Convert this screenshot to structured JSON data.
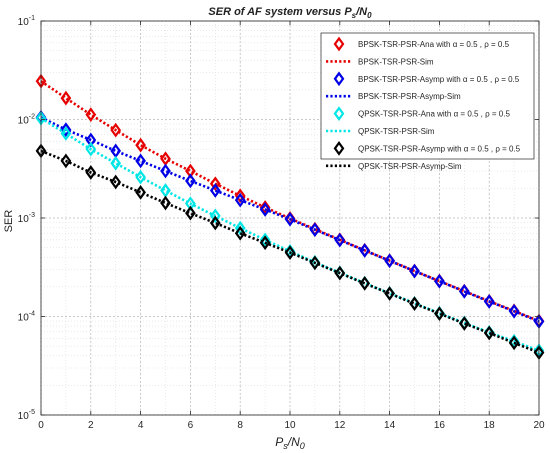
{
  "chart_data": {
    "type": "line",
    "title_main": "SER of AF system versus P",
    "title_sub": "s",
    "title_slash": "/N",
    "title_sub2": "0",
    "xlabel_main": "P",
    "xlabel_sub": "s",
    "xlabel_slash": "/N",
    "xlabel_sub2": "0",
    "ylabel": "SER",
    "x": [
      0,
      1,
      2,
      3,
      4,
      5,
      6,
      7,
      8,
      9,
      10,
      11,
      12,
      13,
      14,
      15,
      16,
      17,
      18,
      19,
      20
    ],
    "xlim": [
      0,
      20
    ],
    "ylim": [
      1e-05,
      0.1
    ],
    "yscale": "log",
    "grid": true,
    "legend_position": "top-right",
    "x_tick_values": [
      0,
      2,
      4,
      6,
      8,
      10,
      12,
      14,
      16,
      18,
      20
    ],
    "x_tick_labels": [
      "0",
      "2",
      "4",
      "6",
      "8",
      "10",
      "12",
      "14",
      "16",
      "18",
      "20"
    ],
    "y_tick_values": [
      1e-05,
      0.0001,
      0.001,
      0.01,
      0.1
    ],
    "y_tick_labels": [
      {
        "base": "10",
        "exp": "-5"
      },
      {
        "base": "10",
        "exp": "-4"
      },
      {
        "base": "10",
        "exp": "-3"
      },
      {
        "base": "10",
        "exp": "-2"
      },
      {
        "base": "10",
        "exp": "-1"
      }
    ],
    "series": [
      {
        "name": "BPSK-TSR-PSR-Ana with α = 0.5 , ρ = 0.5",
        "color": "#e60000",
        "style": "marker",
        "values": [
          0.0245,
          0.0165,
          0.0112,
          0.0078,
          0.0055,
          0.004,
          0.003,
          0.00223,
          0.00168,
          0.00128,
          0.00099,
          0.00077,
          0.000602,
          0.00047,
          0.000369,
          0.00029,
          0.000229,
          0.000181,
          0.000143,
          0.000114,
          9e-05
        ]
      },
      {
        "name": "BPSK-TSR-PSR-Sim",
        "color": "#e60000",
        "style": "dotted",
        "values": [
          0.0245,
          0.0165,
          0.0112,
          0.0078,
          0.0055,
          0.004,
          0.003,
          0.00223,
          0.00168,
          0.00128,
          0.00099,
          0.00077,
          0.000602,
          0.00047,
          0.000369,
          0.00029,
          0.000229,
          0.000181,
          0.000143,
          0.000114,
          9e-05
        ]
      },
      {
        "name": "BPSK-TSR-PSR-Asymp with α = 0.5 , ρ = 0.5",
        "color": "#0000e6",
        "style": "marker",
        "values": [
          0.0105,
          0.0079,
          0.0062,
          0.0048,
          0.0038,
          0.003,
          0.00238,
          0.0019,
          0.00152,
          0.00122,
          0.00097,
          0.00076,
          0.000596,
          0.000468,
          0.000368,
          0.000289,
          0.000228,
          0.00018,
          0.000142,
          0.000113,
          8.9e-05
        ]
      },
      {
        "name": "BPSK-TSR-PSR-Asymp-Sim",
        "color": "#0000e6",
        "style": "dotted",
        "values": [
          0.0105,
          0.0079,
          0.0062,
          0.0048,
          0.0038,
          0.003,
          0.00238,
          0.0019,
          0.00152,
          0.00122,
          0.00097,
          0.00076,
          0.000596,
          0.000468,
          0.000368,
          0.000289,
          0.000228,
          0.00018,
          0.000142,
          0.000113,
          8.9e-05
        ]
      },
      {
        "name": "QPSK-TSR-PSR-Ana with α = 0.5 , ρ = 0.5",
        "color": "#00e6e6",
        "style": "marker",
        "values": [
          0.0103,
          0.0072,
          0.005,
          0.0036,
          0.0026,
          0.0019,
          0.0014,
          0.00105,
          0.00079,
          0.0006,
          0.00046,
          0.000355,
          0.000278,
          0.000218,
          0.000172,
          0.000136,
          0.000108,
          8.6e-05,
          6.9e-05,
          5.6e-05,
          4.5e-05
        ]
      },
      {
        "name": "QPSK-TSR-PSR-Sim",
        "color": "#00e6e6",
        "style": "dotted",
        "values": [
          0.0103,
          0.0072,
          0.005,
          0.0036,
          0.0026,
          0.0019,
          0.0014,
          0.00105,
          0.00079,
          0.0006,
          0.00046,
          0.000355,
          0.000278,
          0.000218,
          0.000172,
          0.000136,
          0.000108,
          8.6e-05,
          6.9e-05,
          5.6e-05,
          4.5e-05
        ]
      },
      {
        "name": "QPSK-TSR-PSR-Asymp with α = 0.5 , ρ = 0.5",
        "color": "#000000",
        "style": "marker",
        "values": [
          0.0048,
          0.0038,
          0.0029,
          0.00232,
          0.00182,
          0.00142,
          0.00112,
          0.00089,
          0.0007,
          0.00056,
          0.000445,
          0.00035,
          0.000276,
          0.000217,
          0.000171,
          0.000135,
          0.000107,
          8.5e-05,
          6.8e-05,
          5.4e-05,
          4.3e-05
        ]
      },
      {
        "name": "QPSK-TSR-PSR-Asymp-Sim",
        "color": "#000000",
        "style": "dotted",
        "values": [
          0.0048,
          0.0038,
          0.0029,
          0.00232,
          0.00182,
          0.00142,
          0.00112,
          0.00089,
          0.0007,
          0.00056,
          0.000445,
          0.00035,
          0.000276,
          0.000217,
          0.000171,
          0.000135,
          0.000107,
          8.5e-05,
          6.8e-05,
          5.4e-05,
          4.3e-05
        ]
      }
    ]
  }
}
